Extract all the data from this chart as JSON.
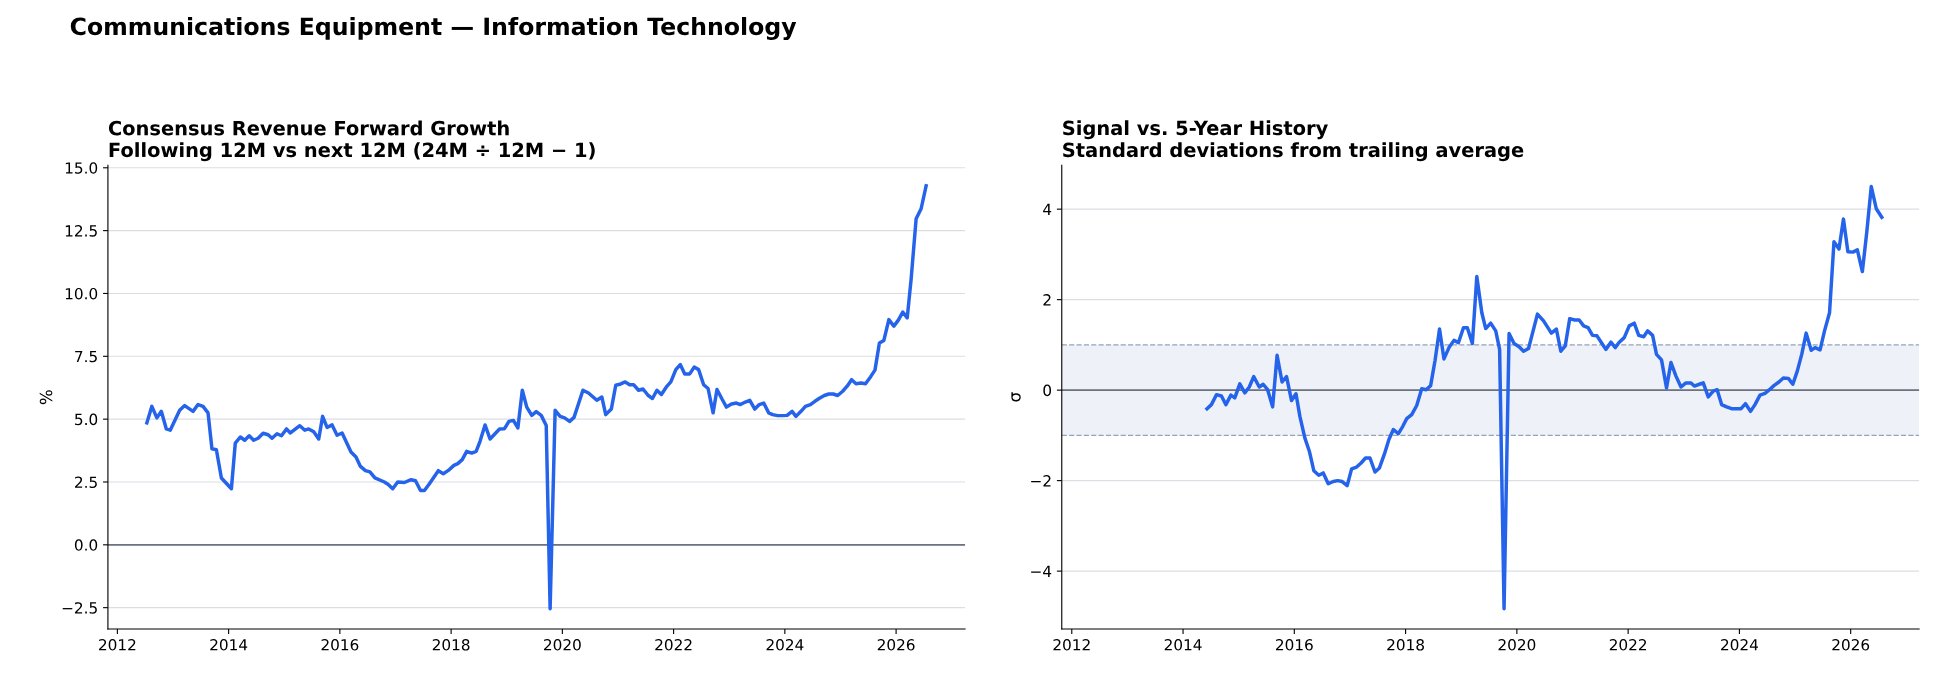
{
  "chart_data": [
    {
      "type": "line",
      "annotations": [
        "Communications Equipment — Information Technology"
      ],
      "title": "Consensus Revenue Forward Growth\nFollowing 12M vs next 12M (24M ÷ 12M − 1)",
      "ylabel": "%",
      "series": [
        {
          "color": "#2563eb",
          "x": [
            2012.53,
            2012.62,
            2012.71,
            2012.79,
            2012.88,
            2012.95,
            2013.12,
            2013.21,
            2013.36,
            2013.45,
            2013.54,
            2013.63,
            2013.7,
            2013.78,
            2013.87,
            2014.05,
            2014.12,
            2014.21,
            2014.29,
            2014.37,
            2014.45,
            2014.53,
            2014.62,
            2014.71,
            2014.78,
            2014.87,
            2014.95,
            2015.04,
            2015.11,
            2015.28,
            2015.37,
            2015.44,
            2015.53,
            2015.62,
            2015.69,
            2015.77,
            2015.86,
            2015.95,
            2016.04,
            2016.2,
            2016.29,
            2016.37,
            2016.46,
            2016.54,
            2016.63,
            2016.8,
            2016.87,
            2016.95,
            2017.04,
            2017.16,
            2017.28,
            2017.36,
            2017.45,
            2017.52,
            2017.61,
            2017.77,
            2017.86,
            2017.95,
            2018.05,
            2018.12,
            2018.2,
            2018.28,
            2018.37,
            2018.45,
            2018.52,
            2018.61,
            2018.7,
            2018.79,
            2018.87,
            2018.96,
            2019.04,
            2019.12,
            2019.2,
            2019.28,
            2019.36,
            2019.45,
            2019.53,
            2019.62,
            2019.71,
            2019.78,
            2019.87,
            2019.96,
            2020.04,
            2020.13,
            2020.21,
            2020.37,
            2020.47,
            2020.62,
            2020.71,
            2020.78,
            2020.88,
            2020.96,
            2021.05,
            2021.13,
            2021.21,
            2021.28,
            2021.37,
            2021.45,
            2021.54,
            2021.62,
            2021.7,
            2021.78,
            2021.87,
            2021.95,
            2022.04,
            2022.12,
            2022.2,
            2022.29,
            2022.37,
            2022.45,
            2022.54,
            2022.62,
            2022.71,
            2022.78,
            2022.87,
            2022.95,
            2023.04,
            2023.13,
            2023.2,
            2023.29,
            2023.37,
            2023.46,
            2023.54,
            2023.62,
            2023.71,
            2023.78,
            2023.87,
            2023.96,
            2024.04,
            2024.13,
            2024.2,
            2024.29,
            2024.37,
            2024.46,
            2024.54,
            2024.63,
            2024.71,
            2024.79,
            2024.87,
            2024.95,
            2025.04,
            2025.12,
            2025.2,
            2025.28,
            2025.37,
            2025.45,
            2025.54,
            2025.62,
            2025.7,
            2025.78,
            2025.87,
            2025.96,
            2026.04,
            2026.12,
            2026.2,
            2026.27,
            2026.36,
            2026.45,
            2026.54
          ],
          "values": [
            4.85,
            5.51,
            5.05,
            5.31,
            4.61,
            4.56,
            5.35,
            5.54,
            5.31,
            5.58,
            5.51,
            5.25,
            3.82,
            3.78,
            2.66,
            2.23,
            4.05,
            4.29,
            4.16,
            4.34,
            4.16,
            4.24,
            4.44,
            4.38,
            4.24,
            4.42,
            4.34,
            4.61,
            4.45,
            4.74,
            4.56,
            4.61,
            4.5,
            4.21,
            5.11,
            4.67,
            4.77,
            4.36,
            4.45,
            3.69,
            3.49,
            3.12,
            2.95,
            2.9,
            2.66,
            2.5,
            2.4,
            2.23,
            2.5,
            2.48,
            2.59,
            2.55,
            2.16,
            2.16,
            2.43,
            2.95,
            2.83,
            2.96,
            3.16,
            3.23,
            3.39,
            3.72,
            3.65,
            3.72,
            4.12,
            4.77,
            4.21,
            4.42,
            4.61,
            4.62,
            4.91,
            4.95,
            4.65,
            6.15,
            5.48,
            5.15,
            5.3,
            5.15,
            4.75,
            -2.54,
            5.35,
            5.11,
            5.05,
            4.91,
            5.07,
            6.15,
            6.04,
            5.75,
            5.88,
            5.18,
            5.4,
            6.35,
            6.4,
            6.48,
            6.37,
            6.37,
            6.15,
            6.2,
            5.95,
            5.82,
            6.15,
            5.98,
            6.28,
            6.48,
            6.97,
            7.17,
            6.8,
            6.8,
            7.07,
            6.97,
            6.37,
            6.22,
            5.25,
            6.18,
            5.8,
            5.48,
            5.6,
            5.64,
            5.58,
            5.68,
            5.75,
            5.4,
            5.58,
            5.64,
            5.25,
            5.18,
            5.14,
            5.14,
            5.15,
            5.31,
            5.11,
            5.31,
            5.51,
            5.58,
            5.71,
            5.84,
            5.94,
            6.0,
            6.0,
            5.94,
            6.11,
            6.31,
            6.57,
            6.41,
            6.44,
            6.41,
            6.68,
            6.95,
            8.03,
            8.13,
            8.96,
            8.7,
            8.94,
            9.26,
            9.03,
            10.56,
            12.97,
            13.37,
            14.28
          ]
        }
      ],
      "xlim": [
        2011.83,
        2027.24
      ],
      "xticks": [
        2012,
        2014,
        2016,
        2018,
        2020,
        2022,
        2024,
        2026
      ],
      "ylim": [
        -3.35,
        15.1
      ],
      "yticks": [
        {
          "value": -2.5,
          "label": "−2.5"
        },
        {
          "value": 0,
          "label": "0.0"
        },
        {
          "value": 2.5,
          "label": "2.5"
        },
        {
          "value": 5,
          "label": "5.0"
        },
        {
          "value": 7.5,
          "label": "7.5"
        },
        {
          "value": 10,
          "label": "10.0"
        },
        {
          "value": 12.5,
          "label": "12.5"
        },
        {
          "value": 15,
          "label": "15.0"
        }
      ],
      "grid": "y",
      "line_style": "solid",
      "marker": "none",
      "ref_lines": [
        {
          "axis": "y",
          "value": 0,
          "color": "#6b7280",
          "line_style": "solid"
        }
      ]
    },
    {
      "type": "line",
      "title": "Signal vs. 5-Year History\nStandard deviations from trailing average",
      "ylabel": "σ",
      "series": [
        {
          "color": "#2563eb",
          "x": [
            2014.43,
            2014.51,
            2014.6,
            2014.69,
            2014.77,
            2014.86,
            2014.93,
            2015.02,
            2015.11,
            2015.19,
            2015.27,
            2015.37,
            2015.44,
            2015.52,
            2015.61,
            2015.69,
            2015.78,
            2015.86,
            2015.95,
            2016.03,
            2016.1,
            2016.19,
            2016.27,
            2016.35,
            2016.44,
            2016.52,
            2016.61,
            2016.7,
            2016.78,
            2016.86,
            2016.95,
            2017.03,
            2017.12,
            2017.2,
            2017.28,
            2017.36,
            2017.45,
            2017.53,
            2017.62,
            2017.7,
            2017.78,
            2017.87,
            2017.95,
            2018.02,
            2018.11,
            2018.2,
            2018.29,
            2018.37,
            2018.45,
            2018.53,
            2018.61,
            2018.69,
            2018.78,
            2018.87,
            2018.95,
            2019.04,
            2019.11,
            2019.2,
            2019.28,
            2019.37,
            2019.44,
            2019.53,
            2019.62,
            2019.69,
            2019.77,
            2019.86,
            2019.95,
            2020.04,
            2020.12,
            2020.21,
            2020.37,
            2020.48,
            2020.62,
            2020.71,
            2020.79,
            2020.87,
            2020.95,
            2021.04,
            2021.12,
            2021.2,
            2021.28,
            2021.36,
            2021.44,
            2021.53,
            2021.6,
            2021.69,
            2021.77,
            2021.84,
            2021.93,
            2022.02,
            2022.11,
            2022.19,
            2022.28,
            2022.35,
            2022.44,
            2022.51,
            2022.6,
            2022.69,
            2022.77,
            2022.86,
            2022.95,
            2023.04,
            2023.13,
            2023.19,
            2023.28,
            2023.35,
            2023.44,
            2023.53,
            2023.6,
            2023.68,
            2023.77,
            2023.86,
            2023.95,
            2024.03,
            2024.11,
            2024.2,
            2024.28,
            2024.37,
            2024.46,
            2024.54,
            2024.62,
            2024.71,
            2024.79,
            2024.88,
            2024.96,
            2025.04,
            2025.12,
            2025.2,
            2025.29,
            2025.36,
            2025.45,
            2025.53,
            2025.62,
            2025.7,
            2025.79,
            2025.87,
            2025.95,
            2026.04,
            2026.12,
            2026.21,
            2026.29,
            2026.37,
            2026.46,
            2026.56
          ],
          "values": [
            -0.41,
            -0.32,
            -0.1,
            -0.13,
            -0.32,
            -0.11,
            -0.17,
            0.14,
            -0.06,
            0.07,
            0.3,
            0.07,
            0.13,
            0.01,
            -0.37,
            0.77,
            0.18,
            0.3,
            -0.23,
            -0.08,
            -0.58,
            -1.06,
            -1.35,
            -1.78,
            -1.88,
            -1.83,
            -2.07,
            -2.02,
            -2.0,
            -2.02,
            -2.11,
            -1.74,
            -1.7,
            -1.61,
            -1.5,
            -1.5,
            -1.81,
            -1.72,
            -1.41,
            -1.09,
            -0.87,
            -0.96,
            -0.8,
            -0.63,
            -0.54,
            -0.34,
            0.03,
            0.01,
            0.1,
            0.66,
            1.35,
            0.69,
            0.94,
            1.1,
            1.05,
            1.38,
            1.38,
            1.03,
            2.51,
            1.71,
            1.36,
            1.48,
            1.31,
            0.9,
            -4.83,
            1.25,
            1.03,
            0.96,
            0.86,
            0.92,
            1.68,
            1.53,
            1.26,
            1.35,
            0.86,
            0.98,
            1.58,
            1.55,
            1.55,
            1.42,
            1.38,
            1.21,
            1.2,
            1.03,
            0.9,
            1.06,
            0.94,
            1.06,
            1.16,
            1.42,
            1.48,
            1.21,
            1.18,
            1.31,
            1.21,
            0.79,
            0.67,
            0.05,
            0.61,
            0.31,
            0.07,
            0.16,
            0.16,
            0.09,
            0.13,
            0.16,
            -0.15,
            -0.02,
            0.01,
            -0.32,
            -0.37,
            -0.41,
            -0.41,
            -0.41,
            -0.3,
            -0.47,
            -0.32,
            -0.11,
            -0.07,
            0.01,
            0.1,
            0.18,
            0.27,
            0.26,
            0.13,
            0.42,
            0.79,
            1.26,
            0.88,
            0.94,
            0.89,
            1.31,
            1.71,
            3.28,
            3.12,
            3.78,
            3.06,
            3.05,
            3.1,
            2.62,
            3.5,
            4.5,
            4.01,
            3.82
          ]
        }
      ],
      "xlim": [
        2011.82,
        2027.23
      ],
      "xticks": [
        2012,
        2014,
        2016,
        2018,
        2020,
        2022,
        2024,
        2026
      ],
      "ylim": [
        -5.28,
        4.97
      ],
      "yticks": [
        {
          "value": -4,
          "label": "−4"
        },
        {
          "value": -2,
          "label": "−2"
        },
        0,
        2,
        4
      ],
      "grid": "y",
      "line_style": "solid",
      "marker": "none",
      "ref_lines": [
        {
          "axis": "y",
          "value": 0,
          "color": "#6b7280",
          "line_style": "solid"
        },
        {
          "axis": "y",
          "value": 1,
          "color": "#94a3b8",
          "line_style": "dashed"
        },
        {
          "axis": "y",
          "value": -1,
          "color": "#94a3b8",
          "line_style": "dashed"
        }
      ],
      "bands": [
        {
          "axis": "y",
          "from": -1,
          "to": 1,
          "color": "#eef2f8"
        }
      ]
    }
  ]
}
